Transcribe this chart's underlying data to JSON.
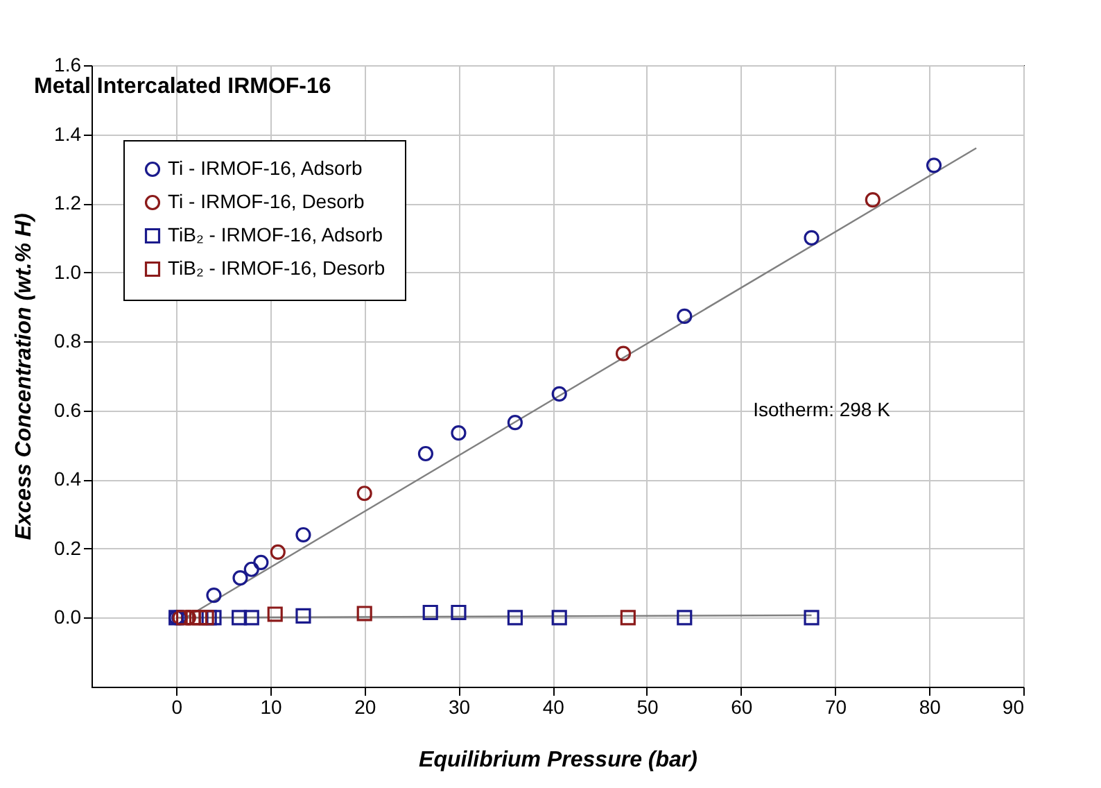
{
  "chart_data": {
    "type": "scatter",
    "title": "Metal Intercalated IRMOF-16",
    "xlabel": "Equilibrium Pressure (bar)",
    "ylabel": "Excess Concentration (wt.% H)",
    "annotations": [
      "Isotherm:  298 K"
    ],
    "xlim": [
      -9,
      90
    ],
    "xticks": [
      0,
      10,
      20,
      30,
      40,
      50,
      60,
      70,
      80,
      90
    ],
    "ylim": [
      -0.2,
      1.6
    ],
    "yticks": [
      {
        "value": 0,
        "label": "0.0"
      },
      {
        "value": 0.2,
        "label": "0.2"
      },
      {
        "value": 0.4,
        "label": "0.4"
      },
      {
        "value": 0.6,
        "label": "0.6"
      },
      {
        "value": 0.8,
        "label": "0.8"
      },
      {
        "value": 1,
        "label": "1.0"
      },
      {
        "value": 1.2,
        "label": "1.2"
      },
      {
        "value": 1.4,
        "label": "1.4"
      },
      {
        "value": 1.6,
        "label": "1.6"
      }
    ],
    "grid": true,
    "legend": "top left",
    "series": [
      {
        "type": "line",
        "color": "#808080",
        "x": [
          1,
          85
        ],
        "values": [
          0,
          1.36
        ]
      },
      {
        "type": "line",
        "color": "#808080",
        "x": [
          0,
          67.5
        ],
        "values": [
          0,
          0.007
        ]
      },
      {
        "name": "Ti - IRMOF-16, Adsorb",
        "color": "#1a1a8c",
        "marker": "circle",
        "x": [
          0,
          0.3,
          4,
          6.8,
          8,
          9,
          13.5,
          26.5,
          30,
          36,
          40.7,
          54,
          67.5,
          80.5
        ],
        "values": [
          0,
          0,
          0.065,
          0.115,
          0.14,
          0.16,
          0.24,
          0.475,
          0.535,
          0.565,
          0.648,
          0.873,
          1.1,
          1.31
        ]
      },
      {
        "name": "Ti - IRMOF-16, Desorb",
        "color": "#8b1a1a",
        "marker": "circle",
        "x": [
          0.4,
          1.3,
          10.8,
          20,
          47.5,
          74
        ],
        "values": [
          0,
          0,
          0.19,
          0.36,
          0.765,
          1.21
        ]
      },
      {
        "name": "TiB₂ - IRMOF-16, Adsorb",
        "color": "#1a1a8c",
        "marker": "square",
        "x": [
          0,
          3.5,
          4,
          6.7,
          8,
          13.5,
          27,
          30,
          36,
          40.7,
          54,
          67.5
        ],
        "values": [
          0,
          0,
          0,
          0,
          0,
          0.005,
          0.015,
          0.015,
          0,
          0,
          0,
          0
        ]
      },
      {
        "name": "TiB₂ - IRMOF-16, Desorb",
        "color": "#8b1a1a",
        "marker": "square",
        "x": [
          0.8,
          1.8,
          2.5,
          3.2,
          10.5,
          20,
          48
        ],
        "values": [
          0,
          0,
          0,
          0,
          0.01,
          0.012,
          0
        ]
      }
    ]
  }
}
